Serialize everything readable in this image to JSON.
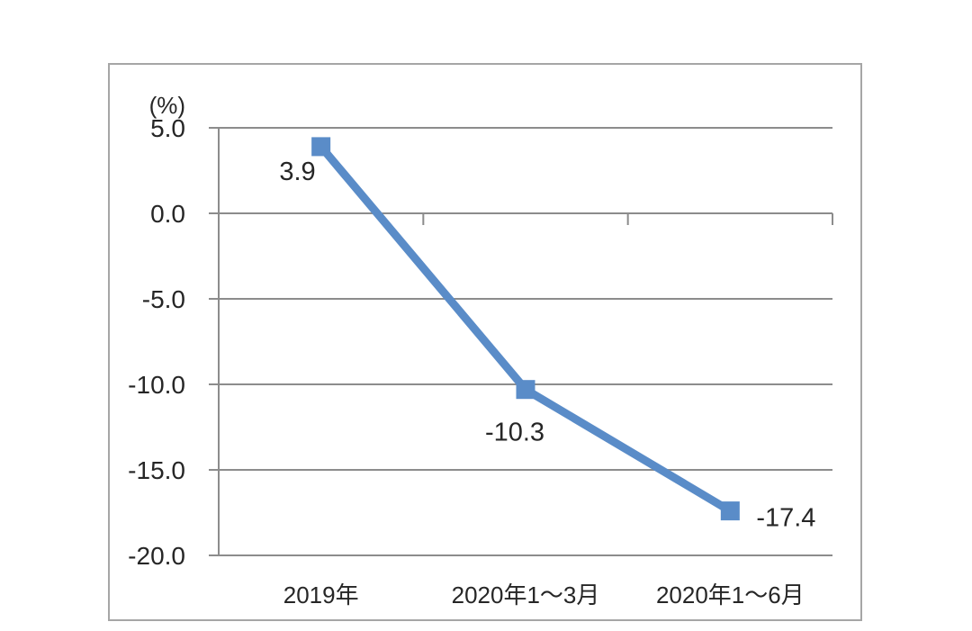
{
  "chart_data": {
    "type": "line",
    "categories": [
      "2019年",
      "2020年1～3月",
      "2020年1～6月"
    ],
    "series": [
      {
        "name": "series-1",
        "values": [
          3.9,
          -10.3,
          -17.4
        ]
      }
    ],
    "data_labels": [
      "3.9",
      "-10.3",
      "-17.4"
    ],
    "unit_label": "(%)",
    "y_ticks": [
      "5.0",
      "0.0",
      "-5.0",
      "-10.0",
      "-15.0",
      "-20.0"
    ],
    "ylim": [
      -20,
      5
    ],
    "y_interval": 5,
    "grid": true,
    "legend": "none",
    "marker": "square",
    "colors": {
      "line": "#5a8cc8",
      "marker": "#5a8cc8",
      "gridline": "#8c8c8c",
      "axis": "#8c8c8c",
      "frame_border": "#a6a6a6",
      "text": "#262626",
      "background": "#ffffff"
    }
  }
}
